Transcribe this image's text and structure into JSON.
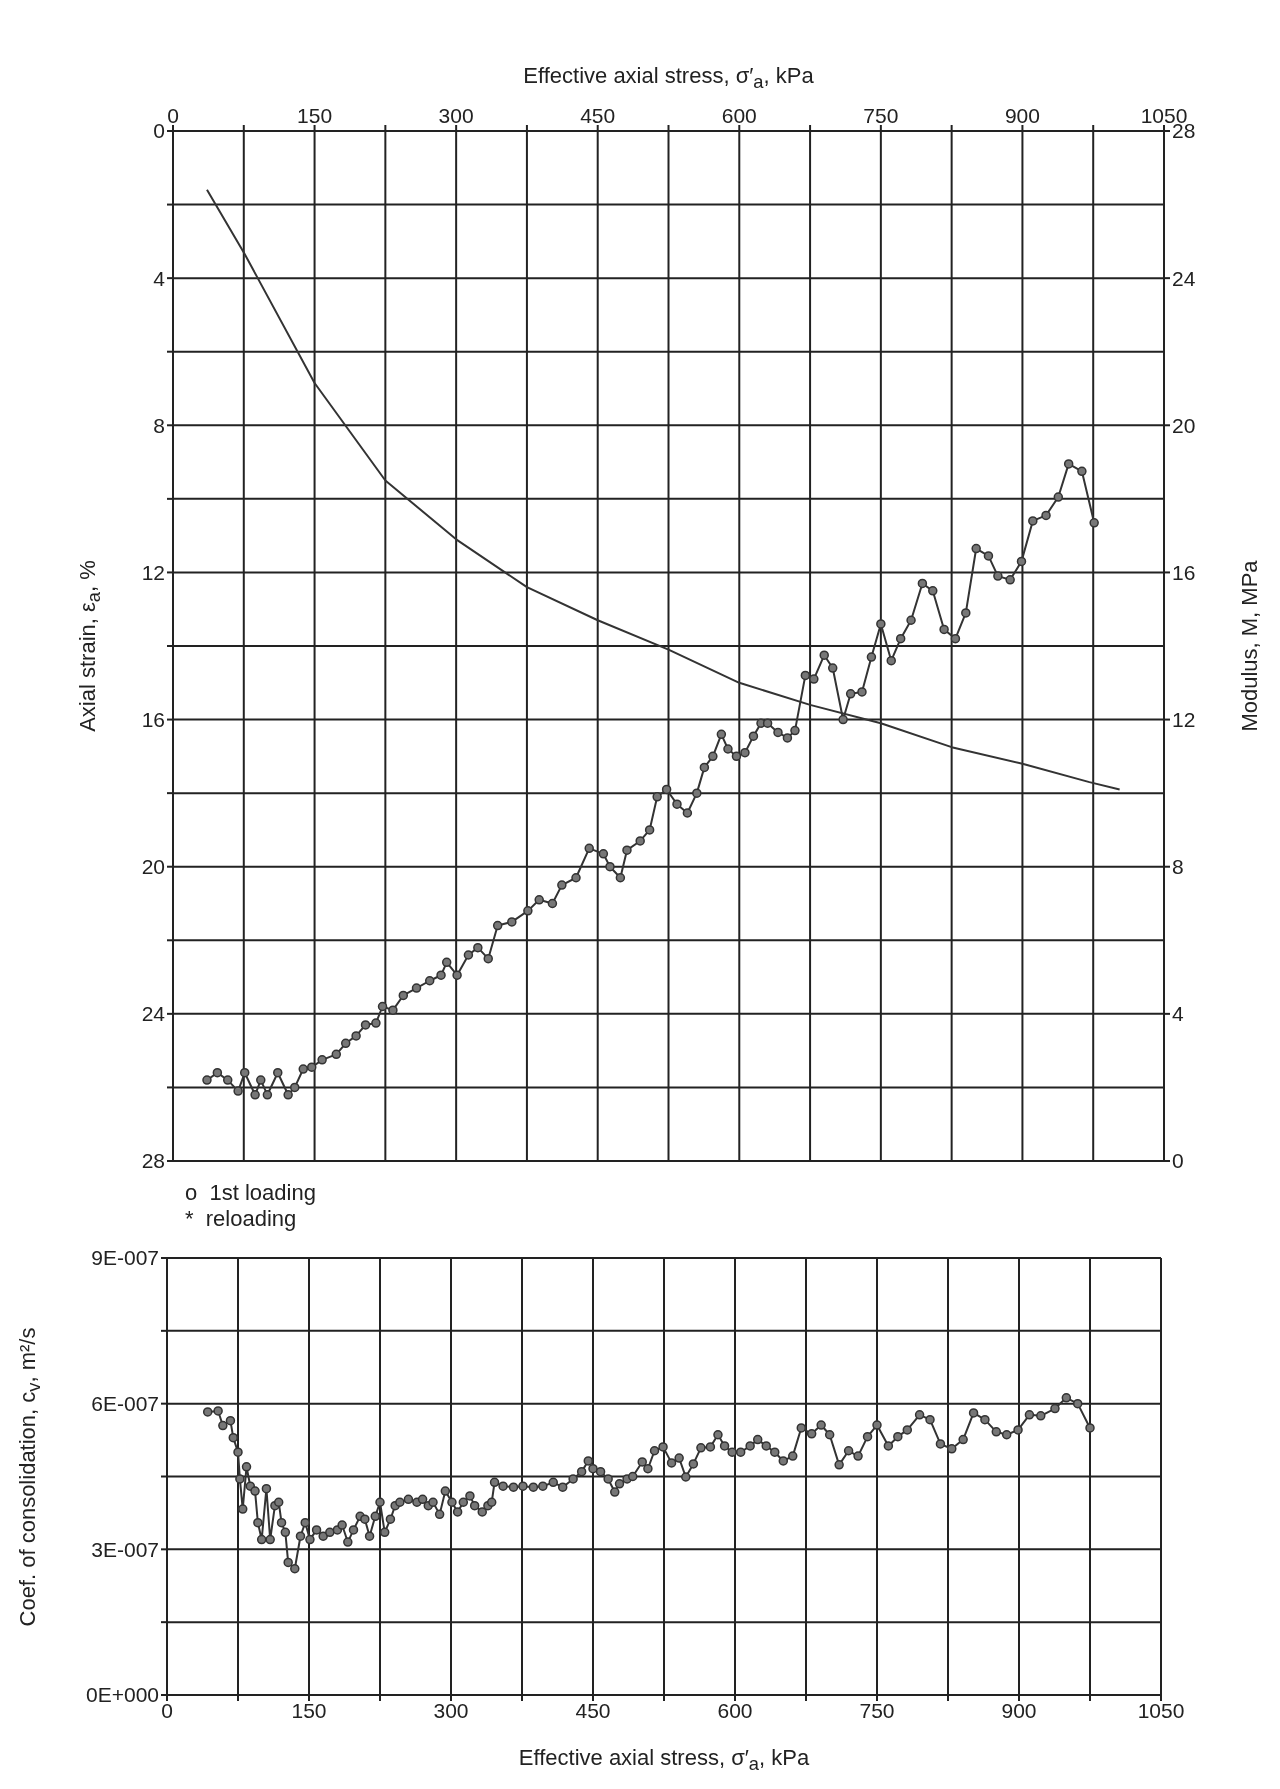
{
  "chart_data": [
    {
      "type": "line",
      "xlabel": "Effective axial stress, σ′$_{a}$, kPa",
      "ylabel": "Axial strain, ε$_{a}$, %",
      "y2label": "Modulus, M, MPa",
      "xlim": [
        0,
        1050
      ],
      "xticks": [
        0,
        {
          "value": 75,
          "label": null
        },
        150,
        {
          "value": 225,
          "label": null
        },
        300,
        {
          "value": 375,
          "label": null
        },
        450,
        {
          "value": 525,
          "label": null
        },
        600,
        {
          "value": 675,
          "label": null
        },
        750,
        {
          "value": 825,
          "label": null
        },
        900,
        {
          "value": 975,
          "label": null
        },
        1050
      ],
      "ylim": [
        28,
        0
      ],
      "yticks": [
        0,
        {
          "value": 2,
          "label": null
        },
        4,
        {
          "value": 6,
          "label": null
        },
        8,
        {
          "value": 10,
          "label": null
        },
        12,
        {
          "value": 14,
          "label": null
        },
        16,
        {
          "value": 18,
          "label": null
        },
        20,
        {
          "value": 22,
          "label": null
        },
        24,
        {
          "value": 26,
          "label": null
        },
        28
      ],
      "y2lim": [
        0,
        28
      ],
      "y2ticks": [
        0,
        4,
        8,
        12,
        16,
        20,
        24,
        28
      ],
      "grid": true,
      "annotations": [
        "o  1st loading",
        "*  reloading"
      ],
      "series": [
        {
          "color": "#333333",
          "marker": "none",
          "x": [
            36,
            75,
            150,
            225,
            300,
            375,
            450,
            525,
            600,
            675,
            750,
            825,
            900,
            971,
            1003
          ],
          "values": [
            1.6,
            3.3,
            6.85,
            9.5,
            11.1,
            12.4,
            13.3,
            14.1,
            15.0,
            15.6,
            16.1,
            16.75,
            17.2,
            17.7,
            17.9
          ]
        },
        {
          "color": "#333333",
          "marker": "circle",
          "axis": "y2",
          "x": [
            36,
            47,
            58,
            69,
            76,
            87,
            93,
            100,
            111,
            122,
            129,
            138,
            147,
            158,
            173,
            183,
            194,
            204,
            215,
            222,
            233,
            244,
            258,
            272,
            284,
            290,
            301,
            313,
            323,
            334,
            344,
            359,
            376,
            388,
            402,
            412,
            427,
            441,
            456,
            463,
            474,
            481,
            495,
            505,
            513,
            523,
            534,
            545,
            555,
            563,
            572,
            581,
            588,
            597,
            606,
            615,
            623,
            630,
            641,
            651,
            659,
            670,
            679,
            690,
            699,
            710,
            718,
            730,
            740,
            750,
            761,
            771,
            782,
            794,
            805,
            817,
            829,
            840,
            851,
            864,
            874,
            887,
            899,
            911,
            925,
            938,
            949,
            963,
            976
          ],
          "values": [
            2.2,
            2.4,
            2.2,
            1.9,
            2.4,
            1.8,
            2.2,
            1.8,
            2.4,
            1.8,
            2.0,
            2.5,
            2.55,
            2.75,
            2.9,
            3.2,
            3.4,
            3.7,
            3.75,
            4.2,
            4.1,
            4.5,
            4.7,
            4.9,
            5.05,
            5.4,
            5.05,
            5.6,
            5.8,
            5.5,
            6.4,
            6.5,
            6.8,
            7.1,
            7.0,
            7.5,
            7.7,
            8.5,
            8.35,
            8.0,
            7.7,
            8.45,
            8.7,
            9.0,
            9.9,
            10.1,
            9.7,
            9.46,
            10.0,
            10.7,
            11.0,
            11.6,
            11.2,
            11.0,
            11.1,
            11.55,
            11.9,
            11.9,
            11.65,
            11.5,
            11.7,
            13.2,
            13.1,
            13.75,
            13.4,
            12.0,
            12.7,
            12.75,
            13.7,
            14.6,
            13.6,
            14.2,
            14.7,
            15.7,
            15.5,
            14.45,
            14.2,
            14.9,
            16.65,
            16.45,
            15.9,
            15.8,
            16.3,
            17.4,
            17.55,
            18.05,
            18.95,
            18.75,
            17.35
          ]
        }
      ]
    },
    {
      "type": "line",
      "xlabel": "Effective axial stress, σ′$_{a}$, kPa",
      "ylabel": "Coef. of consolidation, c$_{v}$, m²/s",
      "xlim": [
        0,
        1050
      ],
      "xticks": [
        0,
        {
          "value": 75,
          "label": null
        },
        150,
        {
          "value": 225,
          "label": null
        },
        300,
        {
          "value": 375,
          "label": null
        },
        450,
        {
          "value": 525,
          "label": null
        },
        600,
        {
          "value": 675,
          "label": null
        },
        750,
        {
          "value": 825,
          "label": null
        },
        900,
        {
          "value": 975,
          "label": null
        },
        1050
      ],
      "ylim": [
        0,
        9e-07
      ],
      "yticks": [
        {
          "value": 0,
          "label": "0E+000"
        },
        {
          "value": 1.5e-07,
          "label": null
        },
        {
          "value": 3e-07,
          "label": "3E-007"
        },
        {
          "value": 4.5e-07,
          "label": null
        },
        {
          "value": 6e-07,
          "label": "6E-007"
        },
        {
          "value": 7.5e-07,
          "label": null
        },
        {
          "value": 9e-07,
          "label": "9E-007"
        }
      ],
      "grid": true,
      "series": [
        {
          "color": "#333333",
          "marker": "circle",
          "x": [
            43,
            54,
            59,
            67,
            70,
            75,
            77,
            80,
            84,
            88,
            93,
            96,
            100,
            105,
            109,
            114,
            118,
            121,
            125,
            128,
            135,
            141,
            146,
            151,
            158,
            165,
            172,
            180,
            185,
            191,
            197,
            204,
            209,
            214,
            220,
            225,
            230,
            236,
            241,
            246,
            255,
            264,
            270,
            276,
            281,
            288,
            294,
            301,
            307,
            313,
            320,
            325,
            333,
            339,
            343,
            346,
            355,
            366,
            376,
            387,
            397,
            408,
            418,
            429,
            438,
            445,
            450,
            458,
            466,
            473,
            478,
            486,
            492,
            502,
            508,
            515,
            524,
            533,
            541,
            548,
            556,
            564,
            574,
            582,
            589,
            597,
            606,
            616,
            624,
            633,
            642,
            651,
            661,
            670,
            681,
            691,
            700,
            710,
            720,
            730,
            740,
            750,
            762,
            772,
            782,
            795,
            806,
            817,
            829,
            841,
            852,
            864,
            876,
            887,
            899,
            911,
            923,
            938,
            950,
            962,
            975
          ],
          "values": [
            5.83e-07,
            5.85e-07,
            5.55e-07,
            5.65e-07,
            5.3e-07,
            5e-07,
            4.45e-07,
            3.83e-07,
            4.7e-07,
            4.3e-07,
            4.2e-07,
            3.55e-07,
            3.2e-07,
            4.25e-07,
            3.2e-07,
            3.9e-07,
            3.97e-07,
            3.55e-07,
            3.35e-07,
            2.73e-07,
            2.6e-07,
            3.27e-07,
            3.55e-07,
            3.2e-07,
            3.4e-07,
            3.27e-07,
            3.35e-07,
            3.4e-07,
            3.5e-07,
            3.15e-07,
            3.4e-07,
            3.68e-07,
            3.62e-07,
            3.27e-07,
            3.68e-07,
            3.97e-07,
            3.35e-07,
            3.62e-07,
            3.9e-07,
            3.97e-07,
            4.03e-07,
            3.97e-07,
            4.03e-07,
            3.9e-07,
            3.97e-07,
            3.72e-07,
            4.2e-07,
            3.97e-07,
            3.77e-07,
            3.97e-07,
            4.1e-07,
            3.9e-07,
            3.77e-07,
            3.9e-07,
            3.97e-07,
            4.38e-07,
            4.3e-07,
            4.28e-07,
            4.3e-07,
            4.28e-07,
            4.3e-07,
            4.38e-07,
            4.28e-07,
            4.45e-07,
            4.6e-07,
            4.82e-07,
            4.66e-07,
            4.6e-07,
            4.45e-07,
            4.18e-07,
            4.35e-07,
            4.45e-07,
            4.5e-07,
            4.8e-07,
            4.66e-07,
            5.03e-07,
            5.11e-07,
            4.78e-07,
            4.88e-07,
            4.49e-07,
            4.76e-07,
            5.09e-07,
            5.11e-07,
            5.36e-07,
            5.13e-07,
            5e-07,
            5e-07,
            5.13e-07,
            5.26e-07,
            5.13e-07,
            5e-07,
            4.82e-07,
            4.92e-07,
            5.5e-07,
            5.38e-07,
            5.56e-07,
            5.36e-07,
            4.74e-07,
            5.03e-07,
            4.92e-07,
            5.32e-07,
            5.56e-07,
            5.13e-07,
            5.32e-07,
            5.46e-07,
            5.77e-07,
            5.67e-07,
            5.17e-07,
            5.07e-07,
            5.26e-07,
            5.81e-07,
            5.67e-07,
            5.42e-07,
            5.36e-07,
            5.46e-07,
            5.77e-07,
            5.75e-07,
            5.9e-07,
            6.12e-07,
            6e-07,
            5.5e-07
          ]
        }
      ]
    }
  ]
}
